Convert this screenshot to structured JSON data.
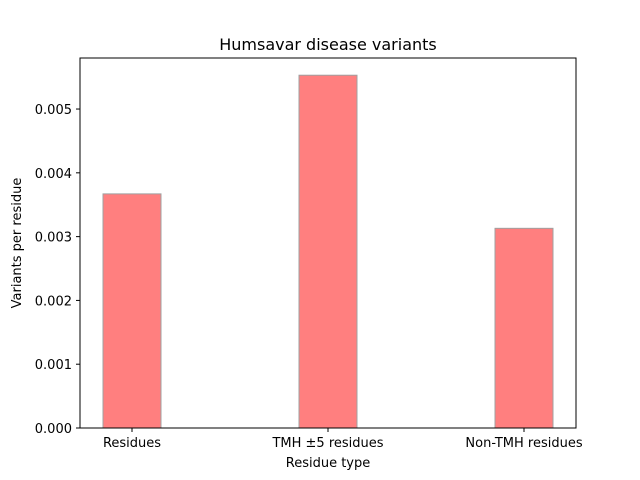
{
  "chart_data": {
    "type": "bar",
    "title": "Humsavar disease variants",
    "xlabel": "Residue type",
    "ylabel": "Variants per residue",
    "categories": [
      "Residues",
      "TMH ±5 residues",
      "Non-TMH residues"
    ],
    "values": [
      0.00367,
      0.00553,
      0.00313
    ],
    "ylim": [
      0,
      0.0058
    ],
    "yticks": [
      0.0,
      0.001,
      0.002,
      0.003,
      0.004,
      0.005
    ],
    "ytick_labels": [
      "0.000",
      "0.001",
      "0.002",
      "0.003",
      "0.004",
      "0.005"
    ],
    "bar_color": "#ff7f7f",
    "bar_edge_color": "#a0a0a0",
    "grid": false,
    "legend": "none"
  }
}
